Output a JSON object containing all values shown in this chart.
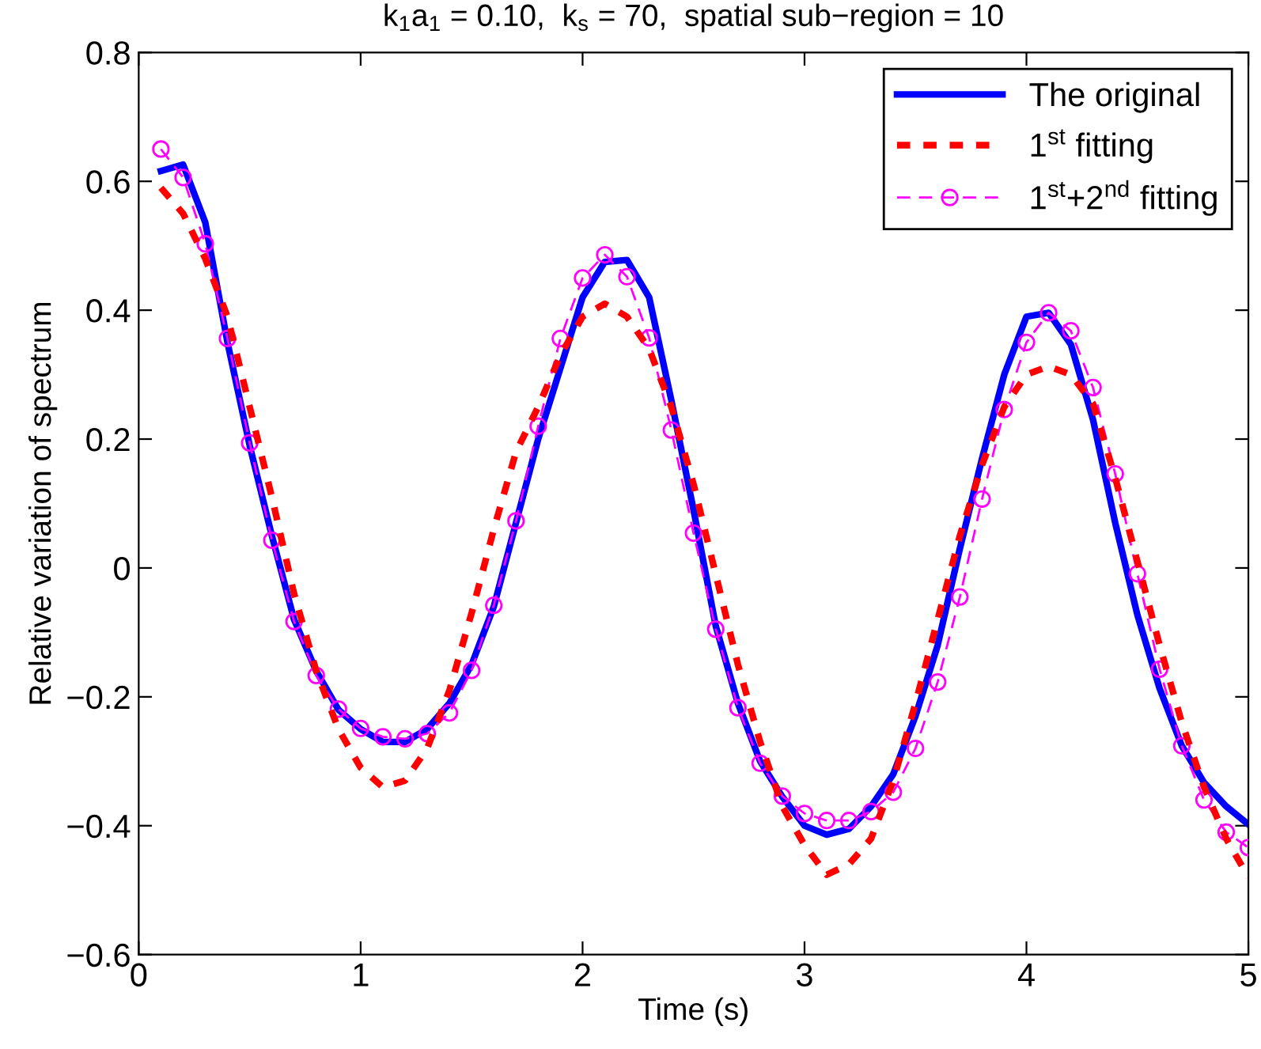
{
  "chart_data": {
    "type": "line",
    "title": "k$_{1}$a$_{1}$ = 0.10,  k$_{s}$ = 70,  spatial sub−region = 10",
    "xlabel": "Time (s)",
    "ylabel": "Relative variation of spectrum",
    "x": [
      0.1,
      0.2,
      0.3,
      0.4,
      0.5,
      0.6,
      0.7,
      0.8,
      0.9,
      1.0,
      1.1,
      1.2,
      1.3,
      1.4,
      1.5,
      1.6,
      1.7,
      1.8,
      1.9,
      2.0,
      2.1,
      2.2,
      2.3,
      2.4,
      2.5,
      2.6,
      2.7,
      2.8,
      2.9,
      3.0,
      3.1,
      3.2,
      3.3,
      3.4,
      3.5,
      3.6,
      3.7,
      3.8,
      3.9,
      4.0,
      4.1,
      4.2,
      4.3,
      4.4,
      4.5,
      4.6,
      4.7,
      4.8,
      4.9,
      5.0
    ],
    "series": [
      {
        "name": "The original",
        "color": "#0000ff",
        "line_style": "solid",
        "marker": "none",
        "values": [
          0.616,
          0.626,
          0.536,
          0.35,
          0.19,
          0.05,
          -0.08,
          -0.16,
          -0.22,
          -0.25,
          -0.27,
          -0.27,
          -0.25,
          -0.21,
          -0.15,
          -0.06,
          0.07,
          0.2,
          0.31,
          0.42,
          0.475,
          0.478,
          0.42,
          0.26,
          0.09,
          -0.09,
          -0.21,
          -0.3,
          -0.355,
          -0.4,
          -0.414,
          -0.405,
          -0.37,
          -0.32,
          -0.23,
          -0.12,
          0.03,
          0.17,
          0.3,
          0.39,
          0.396,
          0.347,
          0.23,
          0.07,
          -0.073,
          -0.187,
          -0.276,
          -0.333,
          -0.37,
          -0.398
        ]
      },
      {
        "name": "1$^{st}$ fitting",
        "color": "#ff0000",
        "line_style": "dashed",
        "marker": "none",
        "values": [
          0.59,
          0.55,
          0.48,
          0.39,
          0.25,
          0.11,
          -0.04,
          -0.16,
          -0.25,
          -0.31,
          -0.34,
          -0.33,
          -0.28,
          -0.19,
          -0.07,
          0.06,
          0.18,
          0.25,
          0.33,
          0.39,
          0.41,
          0.39,
          0.34,
          0.25,
          0.13,
          -0.01,
          -0.15,
          -0.27,
          -0.37,
          -0.43,
          -0.476,
          -0.46,
          -0.42,
          -0.33,
          -0.21,
          -0.08,
          0.05,
          0.16,
          0.25,
          0.3,
          0.313,
          0.3,
          0.255,
          0.14,
          0.01,
          -0.12,
          -0.24,
          -0.34,
          -0.42,
          -0.48
        ]
      },
      {
        "name": "1$^{st}$+2$^{nd}$ fitting",
        "color": "#ff00ff",
        "line_style": "dashed",
        "marker": "circle",
        "values": [
          0.65,
          0.606,
          0.503,
          0.356,
          0.194,
          0.043,
          -0.083,
          -0.167,
          -0.219,
          -0.249,
          -0.262,
          -0.265,
          -0.257,
          -0.225,
          -0.159,
          -0.058,
          0.073,
          0.22,
          0.356,
          0.45,
          0.486,
          0.452,
          0.357,
          0.214,
          0.054,
          -0.095,
          -0.217,
          -0.303,
          -0.354,
          -0.381,
          -0.392,
          -0.392,
          -0.378,
          -0.348,
          -0.28,
          -0.177,
          -0.045,
          0.107,
          0.246,
          0.35,
          0.396,
          0.368,
          0.28,
          0.146,
          -0.009,
          -0.157,
          -0.276,
          -0.36,
          -0.41,
          -0.434
        ]
      }
    ],
    "xlim": [
      0,
      5
    ],
    "xticks": [
      0,
      1,
      2,
      3,
      4,
      5
    ],
    "ylim": [
      -0.6,
      0.8
    ],
    "yticks": [
      {
        "value": -0.6,
        "label": "−0.6"
      },
      {
        "value": -0.4,
        "label": "−0.4"
      },
      {
        "value": -0.2,
        "label": "−0.2"
      },
      0,
      0.2,
      0.4,
      0.6,
      0.8
    ],
    "grid": false,
    "legend": "top right"
  }
}
